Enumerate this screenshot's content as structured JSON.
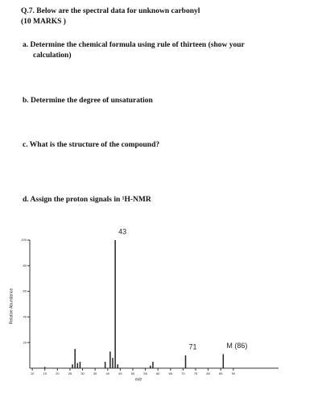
{
  "question": {
    "title": "Q.7. Below are the spectral data for unknown carbonyl",
    "marks": "(10 MARKS )",
    "parts": [
      "a.  Determine the chemical formula using rule of thirteen (show your",
      "calculation)",
      "b.  Determine the degree of unsaturation",
      "c.  What is the structure of the compound?",
      "d.  Assign the proton signals in ¹H-NMR"
    ]
  },
  "chart_data": {
    "type": "bar",
    "x_label": "m/e",
    "y_label": "Relative Abundance",
    "x": [
      15,
      26,
      27,
      28,
      29,
      39,
      41,
      42,
      43,
      44,
      57,
      58,
      71,
      86
    ],
    "values": [
      1,
      3,
      15,
      4,
      5,
      5,
      13,
      8,
      100,
      3,
      2,
      5,
      10,
      11
    ],
    "color": "#222222",
    "xlim": [
      9,
      108
    ],
    "xticks": [
      10,
      15,
      20,
      25,
      30,
      35,
      40,
      45,
      50,
      55,
      60,
      65,
      70,
      75,
      80,
      85,
      90
    ],
    "ylim": [
      0,
      100
    ],
    "yticks": [
      20,
      40,
      60,
      80,
      100
    ],
    "annotations": [
      {
        "text": "43",
        "x": 43,
        "y": 100
      },
      {
        "text": "71",
        "x": 71,
        "y": 10
      },
      {
        "text": "M (86)",
        "x": 86,
        "y": 11
      }
    ]
  }
}
